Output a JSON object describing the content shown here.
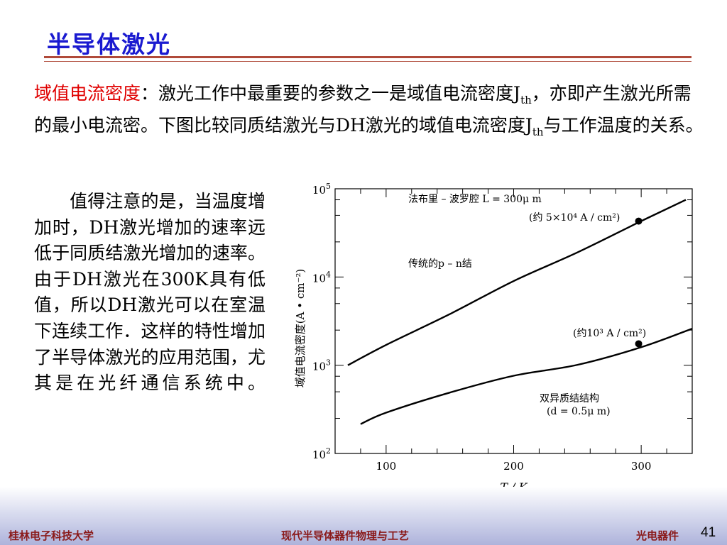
{
  "slide": {
    "title": "半导体激光",
    "intro": {
      "keyword": "域值电流密度",
      "colon": "：",
      "text_a": "激光工作中最重要的参数之一是域值电流密度J",
      "sub1": "th",
      "text_b": "，亦即产生激光所需的最小电流密。下图比较同质结激光与DH激光的域值电流密度J",
      "sub2": "th",
      "text_c": "与工作温度的关系。"
    },
    "side_text": "值得注意的是，当温度增加时，DH激光增加的速率远低于同质结激光增加的速率。由于DH激光在300K具有低值，所以DH激光可以在室温下连续工作．这样的特性增加了半导体激光的应用范围，尤其是在光纤通信系统中。",
    "footer": {
      "left": "桂林电子科技大学",
      "center": "现代半导体器件物理与工艺",
      "right": "光电器件",
      "page": "41"
    }
  },
  "chart_data": {
    "type": "line",
    "y_scale": "log",
    "xlabel": "T / K",
    "ylabel": "域值电流密度(A • cm⁻²)",
    "xlim": [
      60,
      340
    ],
    "ylim": [
      100,
      100000
    ],
    "x_ticks": [
      100,
      200,
      300
    ],
    "y_ticks": [
      100,
      1000,
      10000,
      100000
    ],
    "y_tick_labels": [
      [
        "10",
        "2"
      ],
      [
        "10",
        "3"
      ],
      [
        "10",
        "4"
      ],
      [
        "10",
        "5"
      ]
    ],
    "grid": false,
    "series": [
      {
        "name": "传统的p – n结",
        "x": [
          70,
          100,
          150,
          200,
          250,
          300,
          335
        ],
        "y": [
          1000,
          1700,
          3800,
          9000,
          19000,
          43000,
          75000
        ]
      },
      {
        "name": "双异质结结构",
        "x": [
          80,
          100,
          150,
          200,
          250,
          300,
          340
        ],
        "y": [
          215,
          290,
          490,
          760,
          1010,
          1600,
          2600
        ]
      }
    ],
    "markers": [
      {
        "x": 298,
        "y": 43000
      },
      {
        "x": 298,
        "y": 1750
      }
    ],
    "annotations": [
      "法布里 – 波罗腔  L = 300μ m",
      "(约 5×10⁴ A / cm²)",
      "传统的p – n结",
      "(约10³ A / cm²)",
      "双异质结结构",
      "(d = 0.5μ m)"
    ]
  }
}
